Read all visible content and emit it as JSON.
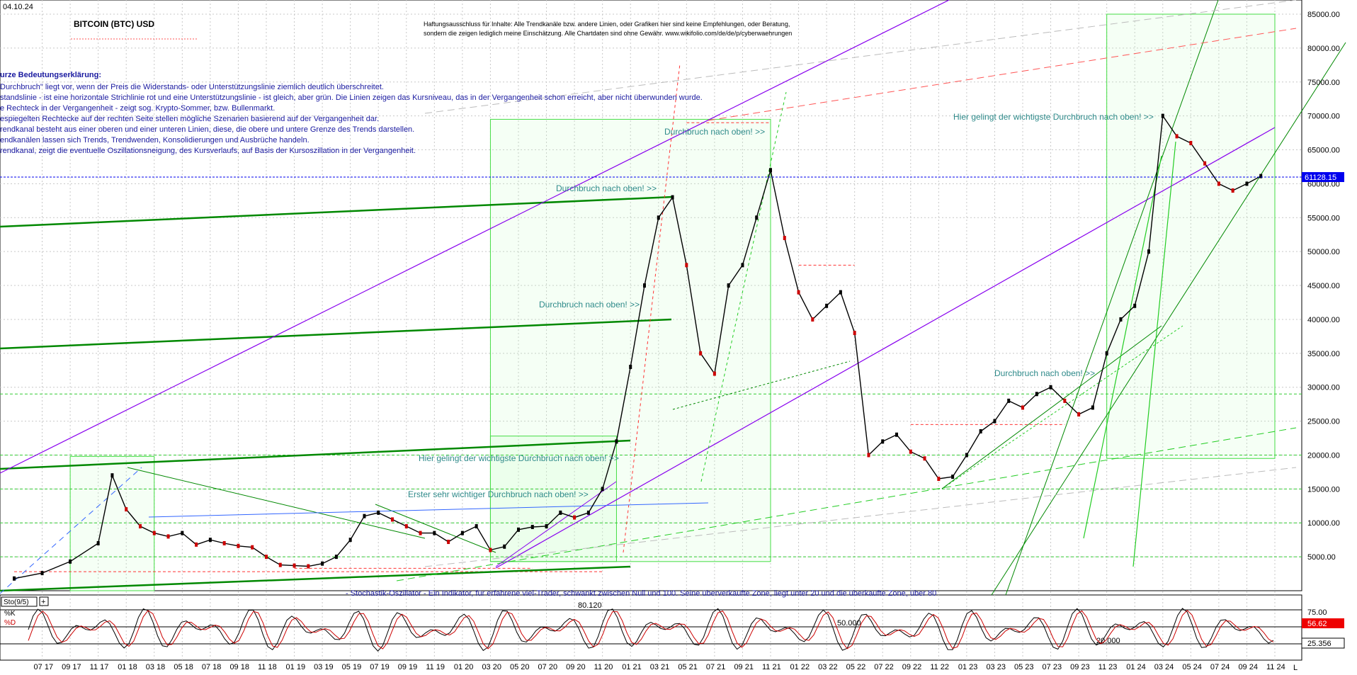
{
  "header": {
    "date": "04.10.24",
    "title": "BITCOIN (BTC) USD",
    "disclaimer_line1": "Haftungsausschluss für Inhalte: Alle Trendkanäle bzw. andere Linien, oder Grafiken hier sind keine Empfehlungen, oder Beratung,",
    "disclaimer_line2": "sondern die zeigen lediglich meine  Einschätzung. Alle Chartdaten sind ohne Gewähr.  www.wikifolio.com/de/de/p/cyberwaehrungen"
  },
  "legend_text": {
    "heading": "urze Bedeutungserklärung:",
    "lines": [
      "Durchbruch\" liegt vor, wenn der Preis die Widerstands- oder Unterstützungslinie ziemlich deutlich überschreitet.",
      "standslinie - ist eine horizontale Strichlinie rot und eine Unterstützungslinie - ist gleich, aber grün. Die Linien zeigen das Kursniveau, das in der Vergangenheit schon erreicht, aber nicht überwunden wurde.",
      "e Rechteck in der Vergangenheit - zeigt sog. Krypto-Sommer, bzw. Bullenmarkt.",
      "espiegelten Rechtecke auf der rechten Seite stellen mögliche Szenarien basierend auf der Vergangenheit dar.",
      "rendkanal besteht aus einer oberen und einer unteren Linien, diese, die obere und untere Grenze des Trends darstellen.",
      "endkanälen lassen sich Trends, Trendwenden, Konsolidierungen und Ausbrüche handeln.",
      "rendkanal, zeigt die eventuelle Oszillationsneigung, des Kursverlaufs, auf Basis der Kursoszillation in der Vergangenheit."
    ],
    "stochastic_note": "- Stochastik-Oszillator - Ein Indikator, für erfahrene viel-Trader, schwankt zwischen Null und 100. Seine überverkaufte Zone, liegt unter 20 und die überkaufte Zone, über 80"
  },
  "annotations": {
    "breakout_up": "Durchbruch nach oben! >>",
    "breakout_up_2": "Durchbruch nach oben! >>",
    "breakout_up_3": "Durchbruch nach oben! >>",
    "breakout_up_4": "Durchbruch nach oben! >>",
    "key_breakout_1": "Hier gelingt der wichtigste Durchbruch nach oben! >>",
    "key_breakout_2": "Hier gelingt der wichtigste Durchbruch nach oben! >>",
    "first_key_breakout": "Erster sehr wichtiger Durchbruch nach oben! >>"
  },
  "price_label": "61128.15",
  "stochastic": {
    "title": "Sto(9/5)",
    "k_label": "%K",
    "d_label": "%D",
    "level_80": "80.120",
    "level_50": "50.000",
    "level_20": "20.000",
    "k_value": "56.62",
    "d_value": "25.356",
    "ticks": [
      "75.00",
      "50.00",
      "25.00"
    ]
  },
  "x_axis_end_label": "L",
  "colors": {
    "candle_up": "#000000",
    "candle_down": "#cc0000",
    "trend_green": "#008800",
    "trend_purple": "#8800ee",
    "support_green": "#22cc22",
    "resistance_red": "#ff3333",
    "annotation_teal": "#2f8a8a",
    "legend_blue": "#1a1aa0",
    "price_marker": "#0000ee",
    "k_marker": "#ee0000"
  },
  "chart_data": {
    "type": "line",
    "title": "BITCOIN (BTC) USD",
    "xlabel": "",
    "ylabel": "",
    "ylim": [
      0,
      85000
    ],
    "y_ticks": [
      "5000.00",
      "10000.00",
      "15000.00",
      "20000.00",
      "25000.00",
      "30000.00",
      "35000.00",
      "40000.00",
      "45000.00",
      "50000.00",
      "55000.00",
      "60000.00",
      "65000.00",
      "70000.00",
      "75000.00",
      "80000.00",
      "85000.00"
    ],
    "x_ticks": [
      "07 17",
      "09 17",
      "11 17",
      "01 18",
      "03 18",
      "05 18",
      "07 18",
      "09 18",
      "11 18",
      "01 19",
      "03 19",
      "05 19",
      "07 19",
      "09 19",
      "11 19",
      "01 20",
      "03 20",
      "05 20",
      "07 20",
      "09 20",
      "11 20",
      "01 21",
      "03 21",
      "05 21",
      "07 21",
      "09 21",
      "11 21",
      "01 22",
      "03 22",
      "05 22",
      "07 22",
      "09 22",
      "11 22",
      "01 23",
      "03 23",
      "05 23",
      "07 23",
      "09 23",
      "11 23",
      "01 24",
      "03 24",
      "05 24",
      "07 24",
      "09 24",
      "11 24"
    ],
    "grid": true,
    "series": [
      {
        "name": "",
        "x": [
          "05 17",
          "07 17",
          "09 17",
          "11 17",
          "12 17",
          "01 18",
          "02 18",
          "03 18",
          "04 18",
          "05 18",
          "06 18",
          "07 18",
          "08 18",
          "09 18",
          "10 18",
          "11 18",
          "12 18",
          "01 19",
          "02 19",
          "03 19",
          "04 19",
          "05 19",
          "06 19",
          "07 19",
          "08 19",
          "09 19",
          "10 19",
          "11 19",
          "12 19",
          "01 20",
          "02 20",
          "03 20",
          "04 20",
          "05 20",
          "06 20",
          "07 20",
          "08 20",
          "09 20",
          "10 20",
          "11 20",
          "12 20",
          "01 21",
          "02 21",
          "03 21",
          "04 21",
          "05 21",
          "06 21",
          "07 21",
          "08 21",
          "09 21",
          "10 21",
          "11 21",
          "12 21",
          "01 22",
          "02 22",
          "03 22",
          "04 22",
          "05 22",
          "06 22",
          "07 22",
          "08 22",
          "09 22",
          "10 22",
          "11 22",
          "12 22",
          "01 23",
          "02 23",
          "03 23",
          "04 23",
          "05 23",
          "06 23",
          "07 23",
          "08 23",
          "09 23",
          "10 23",
          "11 23",
          "12 23",
          "01 24",
          "02 24",
          "03 24",
          "04 24",
          "05 24",
          "06 24",
          "07 24",
          "08 24",
          "09 24",
          "10 24"
        ],
        "values": [
          1800,
          2600,
          4300,
          7000,
          17000,
          12000,
          9500,
          8500,
          8000,
          8500,
          6800,
          7500,
          7000,
          6600,
          6400,
          5000,
          3800,
          3700,
          3600,
          4000,
          5000,
          7500,
          11000,
          11500,
          10500,
          9500,
          8500,
          8500,
          7200,
          8500,
          9500,
          6000,
          6500,
          9000,
          9400,
          9500,
          11500,
          10800,
          11500,
          15000,
          22000,
          33000,
          45000,
          55000,
          58000,
          48000,
          35000,
          32000,
          45000,
          48000,
          55000,
          62000,
          52000,
          44000,
          40000,
          42000,
          44000,
          38000,
          20000,
          22000,
          23000,
          20500,
          19500,
          16500,
          16800,
          20000,
          23500,
          25000,
          28000,
          27000,
          29000,
          30000,
          28000,
          26000,
          27000,
          35000,
          40000,
          42000,
          50000,
          70000,
          67000,
          66000,
          63000,
          60000,
          59000,
          60000,
          61128
        ]
      }
    ],
    "horizontal_levels": [
      5000,
      10000,
      15000,
      20000,
      29000,
      61128.15
    ],
    "regions": [
      "bull-market 2017",
      "bull-market 2020-2021",
      "projected 2023-2025"
    ]
  }
}
